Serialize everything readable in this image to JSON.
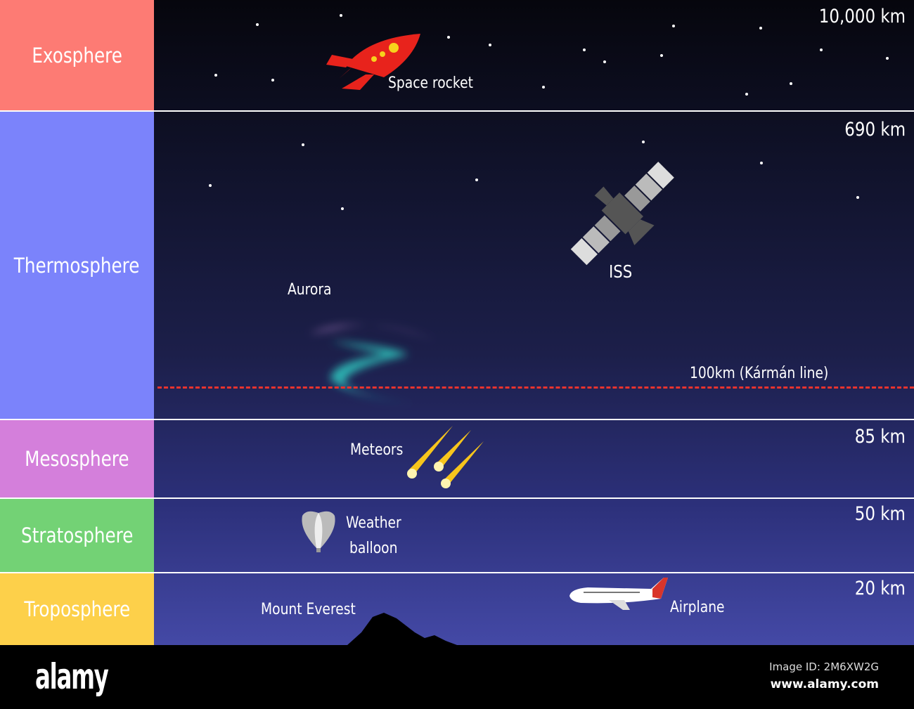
{
  "layers": [
    {
      "name": "Exosphere",
      "color": "#fd7b74",
      "altitude": "10,000 km"
    },
    {
      "name": "Thermosphere",
      "color": "#7b83fb",
      "altitude": "690 km"
    },
    {
      "name": "Mesosphere",
      "color": "#d47fdb",
      "altitude": "85 km"
    },
    {
      "name": "Stratosphere",
      "color": "#73d275",
      "altitude": "50 km"
    },
    {
      "name": "Troposphere",
      "color": "#fdd04a",
      "altitude": "20 km"
    }
  ],
  "objects": {
    "rocket": "Space rocket",
    "iss": "ISS",
    "aurora": "Aurora",
    "karman": "100km (Kármán line)",
    "meteors": "Meteors",
    "balloon_1": "Weather",
    "balloon_2": "balloon",
    "everest": "Mount Everest",
    "airplane": "Airplane"
  },
  "karman_color": "#e8332e",
  "footer": {
    "logo": "alamy",
    "image_id": "Image ID: 2M6XW2G",
    "url": "www.alamy.com"
  }
}
